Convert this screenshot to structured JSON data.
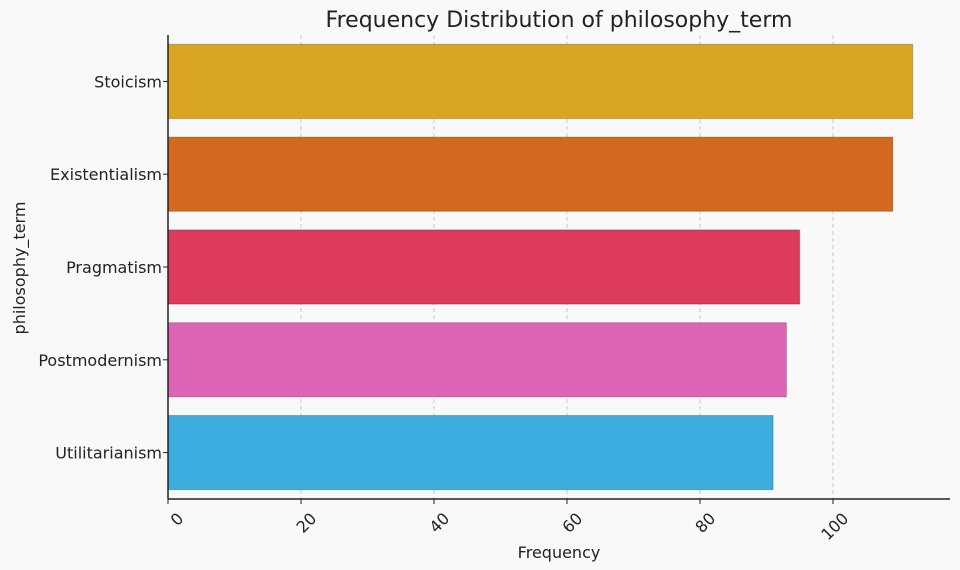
{
  "chart_data": {
    "type": "bar",
    "orientation": "horizontal",
    "title": "Frequency Distribution of philosophy_term",
    "xlabel": "Frequency",
    "ylabel": "philosophy_term",
    "categories": [
      "Stoicism",
      "Existentialism",
      "Pragmatism",
      "Postmodernism",
      "Utilitarianism"
    ],
    "values": [
      112,
      109,
      95,
      93,
      91
    ],
    "colors": [
      "#daa520",
      "#d2691e",
      "#dc3c5a",
      "#de64b6",
      "#3cadde"
    ],
    "xlim": [
      0,
      117.6
    ],
    "xticks": [
      0,
      20,
      40,
      60,
      80,
      100
    ],
    "xtick_labels": [
      "0",
      "20",
      "40",
      "60",
      "80",
      "100"
    ],
    "grid": {
      "x": true,
      "y": false,
      "style": "dashed"
    },
    "legend": "none"
  }
}
